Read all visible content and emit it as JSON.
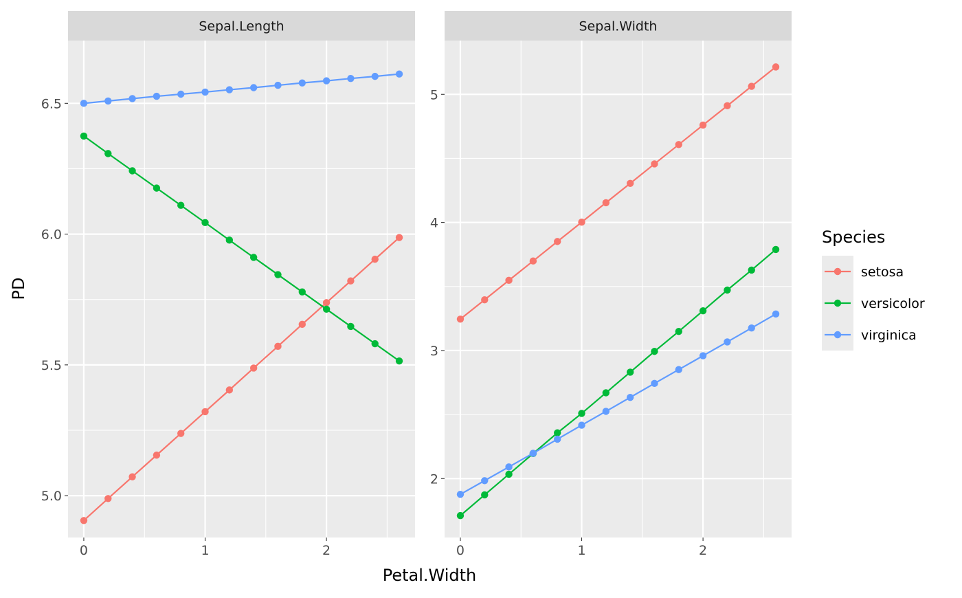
{
  "chart_data": {
    "type": "line",
    "xlabel": "Petal.Width",
    "ylabel": "PD",
    "x": [
      0,
      0.2,
      0.4,
      0.6,
      0.8,
      1.0,
      1.2,
      1.4,
      1.6,
      1.8,
      2.0,
      2.2,
      2.4,
      2.6
    ],
    "legend": {
      "title": "Species",
      "position": "right",
      "entries": [
        {
          "name": "setosa",
          "color": "#F8766D"
        },
        {
          "name": "versicolor",
          "color": "#00BA38"
        },
        {
          "name": "virginica",
          "color": "#619CFF"
        }
      ]
    },
    "panels": [
      {
        "strip": "Sepal.Length",
        "xlim": [
          -0.13,
          2.73
        ],
        "ylim": [
          4.84,
          6.74
        ],
        "x_ticks": [
          0,
          1,
          2
        ],
        "x_tick_labels": [
          "0",
          "1",
          "2"
        ],
        "y_ticks": [
          5.0,
          5.5,
          6.0,
          6.5
        ],
        "y_tick_labels": [
          "5.0",
          "5.5",
          "6.0",
          "6.5"
        ],
        "series": [
          {
            "name": "setosa",
            "values": [
              4.905,
              4.989,
              5.072,
              5.155,
              5.238,
              5.321,
              5.404,
              5.488,
              5.571,
              5.655,
              5.738,
              5.821,
              5.904,
              5.987
            ]
          },
          {
            "name": "versicolor",
            "values": [
              6.375,
              6.308,
              6.242,
              6.176,
              6.11,
              6.044,
              5.977,
              5.911,
              5.845,
              5.779,
              5.713,
              5.647,
              5.581,
              5.515
            ]
          },
          {
            "name": "virginica",
            "values": [
              6.5,
              6.509,
              6.518,
              6.527,
              6.535,
              6.543,
              6.552,
              6.56,
              6.569,
              6.578,
              6.586,
              6.595,
              6.603,
              6.612
            ]
          }
        ]
      },
      {
        "strip": "Sepal.Width",
        "xlim": [
          -0.13,
          2.73
        ],
        "ylim": [
          1.54,
          5.42
        ],
        "x_ticks": [
          0,
          1,
          2
        ],
        "x_tick_labels": [
          "0",
          "1",
          "2"
        ],
        "y_ticks": [
          2,
          3,
          4,
          5
        ],
        "y_tick_labels": [
          "2",
          "3",
          "4",
          "5"
        ],
        "series": [
          {
            "name": "setosa",
            "values": [
              3.245,
              3.396,
              3.548,
              3.699,
              3.851,
              4.002,
              4.154,
              4.305,
              4.457,
              4.608,
              4.76,
              4.911,
              5.063,
              5.214
            ]
          },
          {
            "name": "versicolor",
            "values": [
              1.711,
              1.873,
              2.034,
              2.196,
              2.357,
              2.509,
              2.67,
              2.831,
              2.993,
              3.149,
              3.31,
              3.472,
              3.628,
              3.789
            ]
          },
          {
            "name": "virginica",
            "values": [
              1.877,
              1.984,
              2.091,
              2.198,
              2.308,
              2.417,
              2.525,
              2.634,
              2.743,
              2.851,
              2.959,
              3.067,
              3.176,
              3.285
            ]
          }
        ]
      }
    ]
  }
}
